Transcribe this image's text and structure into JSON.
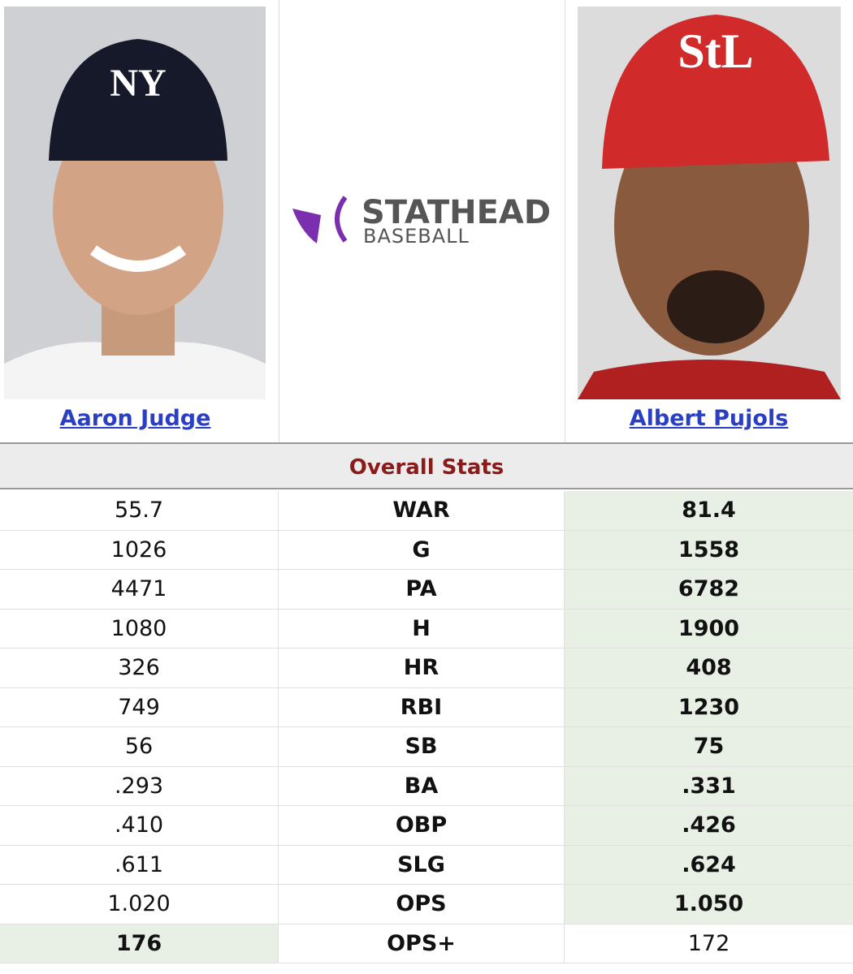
{
  "header": {
    "left_player": "Aaron Judge",
    "right_player": "Albert Pujols",
    "logo": {
      "title": "STATHEAD",
      "subtitle": "BASEBALL"
    }
  },
  "table": {
    "section_title": "Overall Stats",
    "rows": [
      {
        "left": "55.7",
        "stat": "WAR",
        "right": "81.4",
        "leader": "right"
      },
      {
        "left": "1026",
        "stat": "G",
        "right": "1558",
        "leader": "right"
      },
      {
        "left": "4471",
        "stat": "PA",
        "right": "6782",
        "leader": "right"
      },
      {
        "left": "1080",
        "stat": "H",
        "right": "1900",
        "leader": "right"
      },
      {
        "left": "326",
        "stat": "HR",
        "right": "408",
        "leader": "right"
      },
      {
        "left": "749",
        "stat": "RBI",
        "right": "1230",
        "leader": "right"
      },
      {
        "left": "56",
        "stat": "SB",
        "right": "75",
        "leader": "right"
      },
      {
        "left": ".293",
        "stat": "BA",
        "right": ".331",
        "leader": "right"
      },
      {
        "left": ".410",
        "stat": "OBP",
        "right": ".426",
        "leader": "right"
      },
      {
        "left": ".611",
        "stat": "SLG",
        "right": ".624",
        "leader": "right"
      },
      {
        "left": "1.020",
        "stat": "OPS",
        "right": "1.050",
        "leader": "right"
      },
      {
        "left": "176",
        "stat": "OPS+",
        "right": "172",
        "leader": "left"
      }
    ]
  }
}
